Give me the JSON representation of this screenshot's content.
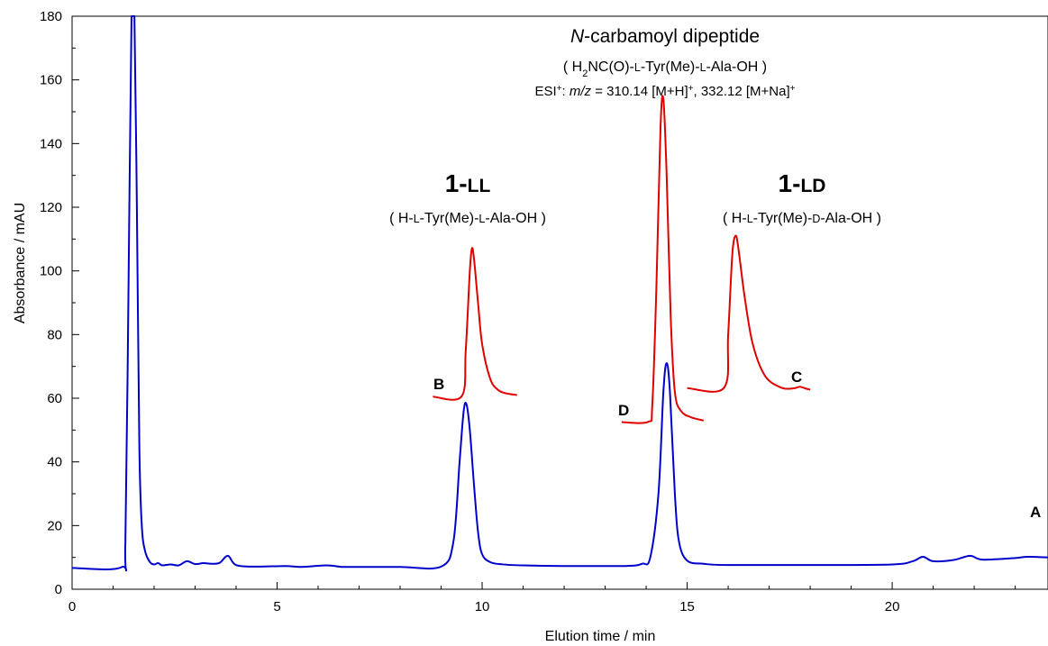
{
  "chart_data": {
    "type": "line",
    "xlabel": "Elution time  /  min",
    "ylabel": "Absorbance  /  mAU",
    "xlim": [
      0,
      23.8
    ],
    "ylim": [
      0,
      180
    ],
    "x_ticks": [
      "0",
      "5",
      "10",
      "15",
      "20"
    ],
    "y_ticks": [
      "0",
      "20",
      "40",
      "60",
      "80",
      "100",
      "120",
      "140",
      "160",
      "180"
    ],
    "grid": false,
    "colors": {
      "trace_A": "#0000cc",
      "insets": "#e00000"
    },
    "series": [
      {
        "name": "A",
        "color": "#0000cc",
        "x": [
          0,
          1.2,
          1.3,
          1.38,
          1.45,
          1.52,
          1.58,
          1.64,
          1.7,
          1.78,
          1.9,
          2.0,
          2.1,
          2.2,
          2.4,
          2.6,
          2.8,
          3.0,
          3.2,
          3.4,
          3.6,
          3.8,
          4.0,
          4.5,
          5.2,
          5.6,
          6.2,
          6.6,
          7.0,
          8.0,
          9.0,
          9.3,
          9.45,
          9.55,
          9.62,
          9.7,
          9.8,
          9.9,
          10.0,
          10.2,
          10.5,
          11.0,
          12.0,
          13.5,
          13.9,
          14.1,
          14.3,
          14.42,
          14.5,
          14.58,
          14.7,
          14.8,
          15.0,
          15.4,
          16.0,
          18.0,
          20.0,
          20.5,
          20.75,
          21.0,
          21.5,
          21.9,
          22.2,
          23.0,
          23.3,
          23.8
        ],
        "y": [
          6.7,
          6.9,
          15,
          100,
          180,
          180,
          120,
          45,
          20,
          12,
          8.5,
          7.8,
          8.2,
          7.5,
          7.8,
          7.5,
          8.8,
          7.9,
          8.2,
          8.0,
          8.3,
          10.5,
          7.6,
          7.1,
          7.3,
          7.0,
          7.5,
          7.0,
          7.0,
          7.0,
          7.1,
          15,
          40,
          56,
          58,
          50,
          33,
          18,
          11,
          8.5,
          7.8,
          7.5,
          7.3,
          7.3,
          8.0,
          10,
          30,
          62,
          71,
          62,
          30,
          15,
          9,
          8,
          7.6,
          7.6,
          7.8,
          8.8,
          10.2,
          8.8,
          9.2,
          10.5,
          9.3,
          9.8,
          10.2,
          10.0
        ]
      },
      {
        "name": "B",
        "color": "#e00000",
        "x": [
          8.8,
          9.5,
          9.6,
          9.7,
          9.75,
          9.8,
          9.9,
          10.0,
          10.2,
          10.4,
          10.6,
          10.85
        ],
        "y": [
          60.5,
          60.6,
          75,
          100,
          107,
          104,
          90,
          77,
          66,
          62.5,
          61.5,
          61
        ]
      },
      {
        "name": "D",
        "color": "#e00000",
        "x": [
          13.4,
          14.05,
          14.15,
          14.25,
          14.35,
          14.42,
          14.5,
          14.6,
          14.7,
          14.85,
          15.1,
          15.4
        ],
        "y": [
          52.5,
          52.6,
          58,
          95,
          145,
          154,
          130,
          85,
          62,
          56,
          54,
          53
        ]
      },
      {
        "name": "C",
        "color": "#e00000",
        "x": [
          15.0,
          15.9,
          16.0,
          16.1,
          16.18,
          16.25,
          16.4,
          16.6,
          16.9,
          17.3,
          17.6,
          17.75,
          17.9,
          18.0
        ],
        "y": [
          63.2,
          63.3,
          80,
          105,
          111,
          107,
          92,
          77,
          67,
          63.3,
          63.1,
          63.6,
          63.0,
          62.7
        ]
      }
    ],
    "annotations": {
      "ncarb": {
        "title_italic": "N",
        "title_rest": "-carbamoyl dipeptide",
        "formula": [
          "( H",
          "2",
          "NC(O)-",
          "L",
          "-Tyr(Me)-",
          "L",
          "-Ala-OH )"
        ],
        "esi": [
          "ESI",
          "+",
          ": ",
          "m/z",
          " = 310.14 [M+H]",
          "+",
          ", 332.12 [M+Na]",
          "+"
        ]
      },
      "ll": {
        "label": [
          "1-",
          "LL"
        ],
        "formula": [
          "( H-",
          "L",
          "-Tyr(Me)-",
          "L",
          "-Ala-OH )"
        ]
      },
      "ld": {
        "label": [
          "1-",
          "LD"
        ],
        "formula": [
          "( H-",
          "L",
          "-Tyr(Me)-",
          "D",
          "-Ala-OH )"
        ]
      }
    }
  }
}
